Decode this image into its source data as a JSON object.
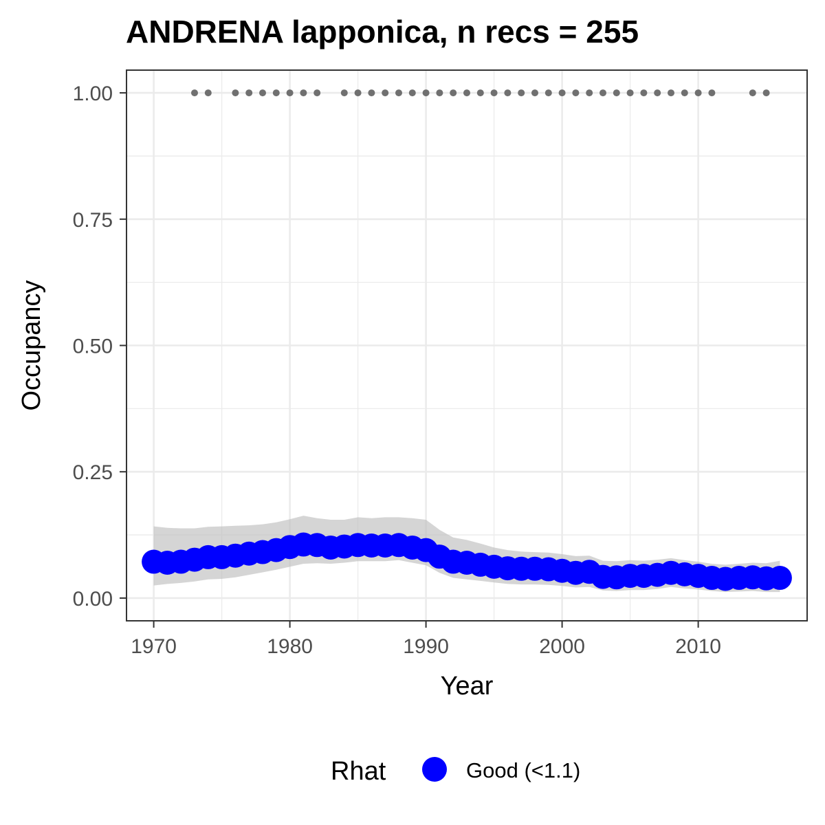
{
  "chart_data": {
    "type": "line",
    "title": "ANDRENA lapponica, n recs = 255",
    "xlabel": "Year",
    "ylabel": "Occupancy",
    "xlim": [
      1968,
      2018
    ],
    "ylim": [
      -0.045,
      1.045
    ],
    "x_ticks": [
      1970,
      1980,
      1990,
      2000,
      2010
    ],
    "x_tick_labels": [
      "1970",
      "1980",
      "1990",
      "2000",
      "2010"
    ],
    "y_ticks": [
      0.0,
      0.25,
      0.5,
      0.75,
      1.0
    ],
    "y_tick_labels": [
      "0.00",
      "0.25",
      "0.50",
      "0.75",
      "1.00"
    ],
    "grid": true,
    "legend": {
      "title": "Rhat",
      "position": "bottom",
      "entries": [
        {
          "label": "Good (<1.1)",
          "color": "#0000ff"
        }
      ]
    },
    "series": [
      {
        "name": "Good (<1.1)",
        "color": "#0000ff",
        "x": [
          1970,
          1971,
          1972,
          1973,
          1974,
          1975,
          1976,
          1977,
          1978,
          1979,
          1980,
          1981,
          1982,
          1983,
          1984,
          1985,
          1986,
          1987,
          1988,
          1989,
          1990,
          1991,
          1992,
          1993,
          1994,
          1995,
          1996,
          1997,
          1998,
          1999,
          2000,
          2001,
          2002,
          2003,
          2004,
          2005,
          2006,
          2007,
          2008,
          2009,
          2010,
          2011,
          2012,
          2013,
          2014,
          2015,
          2016
        ],
        "y": [
          0.072,
          0.07,
          0.072,
          0.076,
          0.081,
          0.081,
          0.084,
          0.088,
          0.091,
          0.095,
          0.101,
          0.106,
          0.105,
          0.1,
          0.102,
          0.105,
          0.104,
          0.104,
          0.105,
          0.1,
          0.095,
          0.082,
          0.072,
          0.07,
          0.066,
          0.062,
          0.059,
          0.058,
          0.058,
          0.057,
          0.054,
          0.05,
          0.052,
          0.042,
          0.041,
          0.044,
          0.044,
          0.046,
          0.05,
          0.047,
          0.044,
          0.04,
          0.038,
          0.04,
          0.041,
          0.039,
          0.04
        ],
        "lower": [
          0.025,
          0.028,
          0.03,
          0.033,
          0.037,
          0.038,
          0.041,
          0.046,
          0.051,
          0.056,
          0.062,
          0.068,
          0.069,
          0.068,
          0.07,
          0.073,
          0.073,
          0.073,
          0.075,
          0.07,
          0.065,
          0.05,
          0.04,
          0.037,
          0.034,
          0.031,
          0.028,
          0.027,
          0.027,
          0.026,
          0.024,
          0.021,
          0.022,
          0.015,
          0.014,
          0.016,
          0.016,
          0.018,
          0.022,
          0.019,
          0.017,
          0.014,
          0.012,
          0.013,
          0.014,
          0.012,
          0.012
        ],
        "upper": [
          0.142,
          0.139,
          0.138,
          0.138,
          0.141,
          0.142,
          0.143,
          0.144,
          0.146,
          0.15,
          0.156,
          0.163,
          0.158,
          0.155,
          0.155,
          0.16,
          0.158,
          0.16,
          0.16,
          0.158,
          0.155,
          0.135,
          0.12,
          0.115,
          0.108,
          0.1,
          0.095,
          0.092,
          0.091,
          0.09,
          0.087,
          0.083,
          0.084,
          0.074,
          0.073,
          0.075,
          0.074,
          0.076,
          0.079,
          0.075,
          0.072,
          0.068,
          0.066,
          0.068,
          0.07,
          0.069,
          0.074
        ]
      }
    ],
    "record_points": {
      "y": 1.0,
      "color": "#707070",
      "x": [
        1973,
        1974,
        1976,
        1977,
        1978,
        1979,
        1980,
        1981,
        1982,
        1984,
        1985,
        1986,
        1987,
        1988,
        1989,
        1990,
        1991,
        1992,
        1993,
        1994,
        1995,
        1996,
        1997,
        1998,
        1999,
        2000,
        2001,
        2002,
        2003,
        2004,
        2005,
        2006,
        2007,
        2008,
        2009,
        2010,
        2011,
        2014,
        2015
      ]
    },
    "ribbon_color": "#bebebe"
  }
}
